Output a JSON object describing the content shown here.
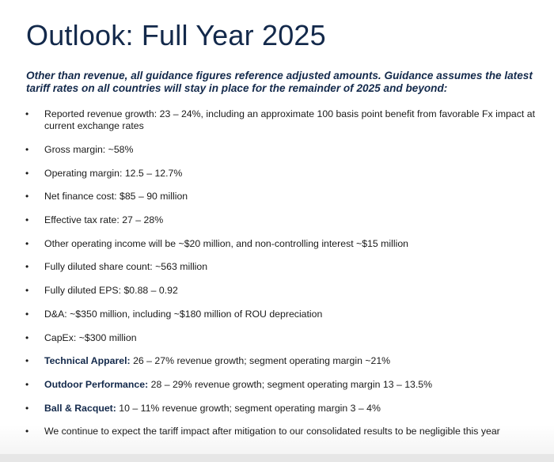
{
  "title": "Outlook: Full Year 2025",
  "subtitle": "Other than revenue, all guidance figures reference adjusted amounts. Guidance assumes the latest tariff rates on all countries will stay in place for the remainder of 2025 and beyond:",
  "bullet_symbol": "•",
  "bullets": [
    {
      "text": "Reported revenue growth: 23 – 24%, including an approximate 100 basis point benefit from favorable Fx impact at current exchange rates"
    },
    {
      "text": "Gross margin: ~58%"
    },
    {
      "text": "Operating margin: 12.5 – 12.7%"
    },
    {
      "text": "Net finance cost: $85 – 90 million"
    },
    {
      "text": "Effective tax rate: 27 – 28%"
    },
    {
      "text": "Other operating income will be ~$20 million, and non-controlling interest ~$15 million"
    },
    {
      "text": "Fully diluted share count: ~563 million"
    },
    {
      "text": "Fully diluted EPS: $0.88 – 0.92"
    },
    {
      "text": "D&A: ~$350 million, including ~$180 million of ROU depreciation"
    },
    {
      "text": "CapEx: ~$300 million"
    }
  ],
  "segments": [
    {
      "name": "Technical Apparel:",
      "text": " 26 – 27% revenue growth; segment operating margin ~21%"
    },
    {
      "name": "Outdoor Performance:",
      "text": " 28 – 29% revenue growth; segment operating margin 13 – 13.5%"
    },
    {
      "name": "Ball & Racquet:",
      "text": " 10 – 11% revenue growth; segment operating margin 3 – 4%"
    }
  ],
  "closing": "We continue to expect the tariff impact after mitigation to our consolidated results to be negligible this year"
}
